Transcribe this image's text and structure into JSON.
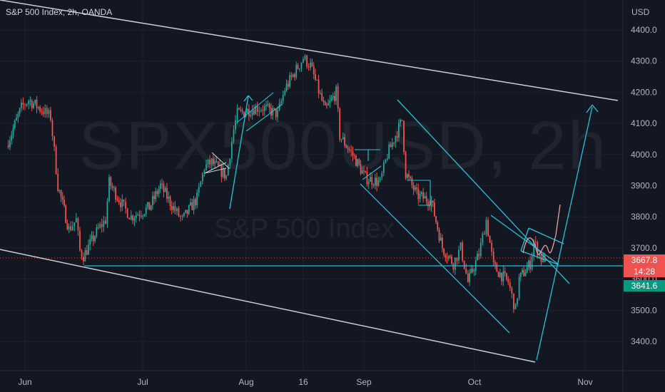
{
  "header": {
    "title": "S&P 500 Index, 2h, OANDA",
    "currency": "USD"
  },
  "watermark": {
    "symbol": "SPX500USD, 2h",
    "name": "S&P 500 Index"
  },
  "badges": {
    "last_price": "3667.8",
    "countdown": "14:28",
    "level": "3641.6"
  },
  "colors": {
    "bg": "#131722",
    "up": "#26a69a",
    "down": "#ef5350",
    "trend": "#c9cdd6",
    "cyan": "#22c3d6",
    "grid": "#1e2230"
  },
  "chart_data": {
    "type": "candlestick",
    "x_ticks": [
      "Jun",
      "Jul",
      "Aug",
      "16",
      "Sep",
      "Oct",
      "Nov"
    ],
    "y_ticks": [
      "4400.0",
      "4300.0",
      "4200.0",
      "4100.0",
      "4000.0",
      "3900.0",
      "3800.0",
      "3700.0",
      "3600.0",
      "3500.0",
      "3400.0"
    ],
    "ylim": [
      3330,
      4450
    ],
    "grid": true,
    "series": [
      {
        "values": [
          [
            "2022-05-27",
            4030
          ],
          [
            "2022-05-31",
            4150
          ],
          [
            "2022-06-02",
            4175
          ],
          [
            "2022-06-06",
            4140
          ],
          [
            "2022-06-08",
            4120
          ],
          [
            "2022-06-10",
            3900
          ],
          [
            "2022-06-13",
            3760
          ],
          [
            "2022-06-15",
            3790
          ],
          [
            "2022-06-16",
            3690
          ],
          [
            "2022-06-17",
            3675
          ],
          [
            "2022-06-21",
            3760
          ],
          [
            "2022-06-23",
            3790
          ],
          [
            "2022-06-24",
            3910
          ],
          [
            "2022-06-28",
            3830
          ],
          [
            "2022-06-30",
            3800
          ],
          [
            "2022-07-05",
            3830
          ],
          [
            "2022-07-08",
            3900
          ],
          [
            "2022-07-12",
            3820
          ],
          [
            "2022-07-14",
            3790
          ],
          [
            "2022-07-18",
            3860
          ],
          [
            "2022-07-20",
            3960
          ],
          [
            "2022-07-22",
            3975
          ],
          [
            "2022-07-26",
            3930
          ],
          [
            "2022-07-28",
            4080
          ],
          [
            "2022-07-29",
            4130
          ],
          [
            "2022-08-03",
            4150
          ],
          [
            "2022-08-05",
            4150
          ],
          [
            "2022-08-09",
            4130
          ],
          [
            "2022-08-11",
            4210
          ],
          [
            "2022-08-15",
            4290
          ],
          [
            "2022-08-16",
            4310
          ],
          [
            "2022-08-18",
            4285
          ],
          [
            "2022-08-22",
            4140
          ],
          [
            "2022-08-25",
            4200
          ],
          [
            "2022-08-26",
            4060
          ],
          [
            "2022-08-30",
            3990
          ],
          [
            "2022-09-02",
            3925
          ],
          [
            "2022-09-06",
            3910
          ],
          [
            "2022-09-08",
            4000
          ],
          [
            "2022-09-12",
            4110
          ],
          [
            "2022-09-13",
            3940
          ],
          [
            "2022-09-16",
            3870
          ],
          [
            "2022-09-20",
            3850
          ],
          [
            "2022-09-23",
            3700
          ],
          [
            "2022-09-26",
            3650
          ],
          [
            "2022-09-28",
            3700
          ],
          [
            "2022-09-30",
            3590
          ],
          [
            "2022-10-03",
            3680
          ],
          [
            "2022-10-05",
            3790
          ],
          [
            "2022-10-07",
            3640
          ],
          [
            "2022-10-11",
            3590
          ],
          [
            "2022-10-13",
            3500
          ],
          [
            "2022-10-14",
            3600
          ],
          [
            "2022-10-17",
            3650
          ],
          [
            "2022-10-18",
            3720
          ],
          [
            "2022-10-20",
            3665
          ],
          [
            "2022-10-21",
            3667.8
          ]
        ]
      }
    ]
  }
}
